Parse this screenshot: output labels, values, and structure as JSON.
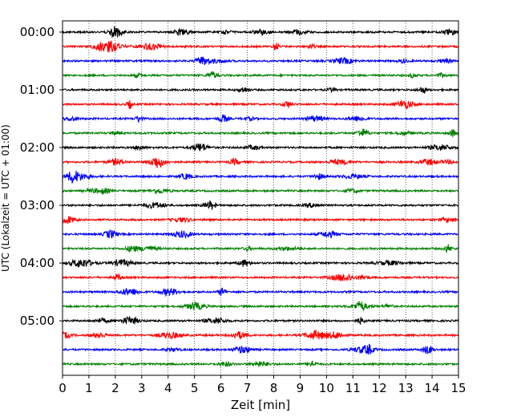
{
  "chart_data": {
    "type": "line",
    "title": "",
    "xlabel": "Zeit  [min]",
    "ylabel": "UTC (Lokalzeit = UTC + 01:00)",
    "xlim": [
      0,
      15
    ],
    "x_ticks": [
      "0",
      "1",
      "2",
      "3",
      "4",
      "5",
      "6",
      "7",
      "8",
      "9",
      "10",
      "11",
      "12",
      "13",
      "14",
      "15"
    ],
    "y_ticks": [
      {
        "label": "00:00",
        "trace": 0
      },
      {
        "label": "01:00",
        "trace": 4
      },
      {
        "label": "02:00",
        "trace": 8
      },
      {
        "label": "03:00",
        "trace": 12
      },
      {
        "label": "04:00",
        "trace": 16
      },
      {
        "label": "05:00",
        "trace": 20
      }
    ],
    "trace_minutes": 15,
    "trace_count": 24,
    "trace_colors": [
      "#000000",
      "#ff0000",
      "#0000ff",
      "#008000"
    ],
    "x_grid": "dotted vertical lines at each minute",
    "series_kind": "seismogram helicorder traces, one per 15 minutes"
  }
}
